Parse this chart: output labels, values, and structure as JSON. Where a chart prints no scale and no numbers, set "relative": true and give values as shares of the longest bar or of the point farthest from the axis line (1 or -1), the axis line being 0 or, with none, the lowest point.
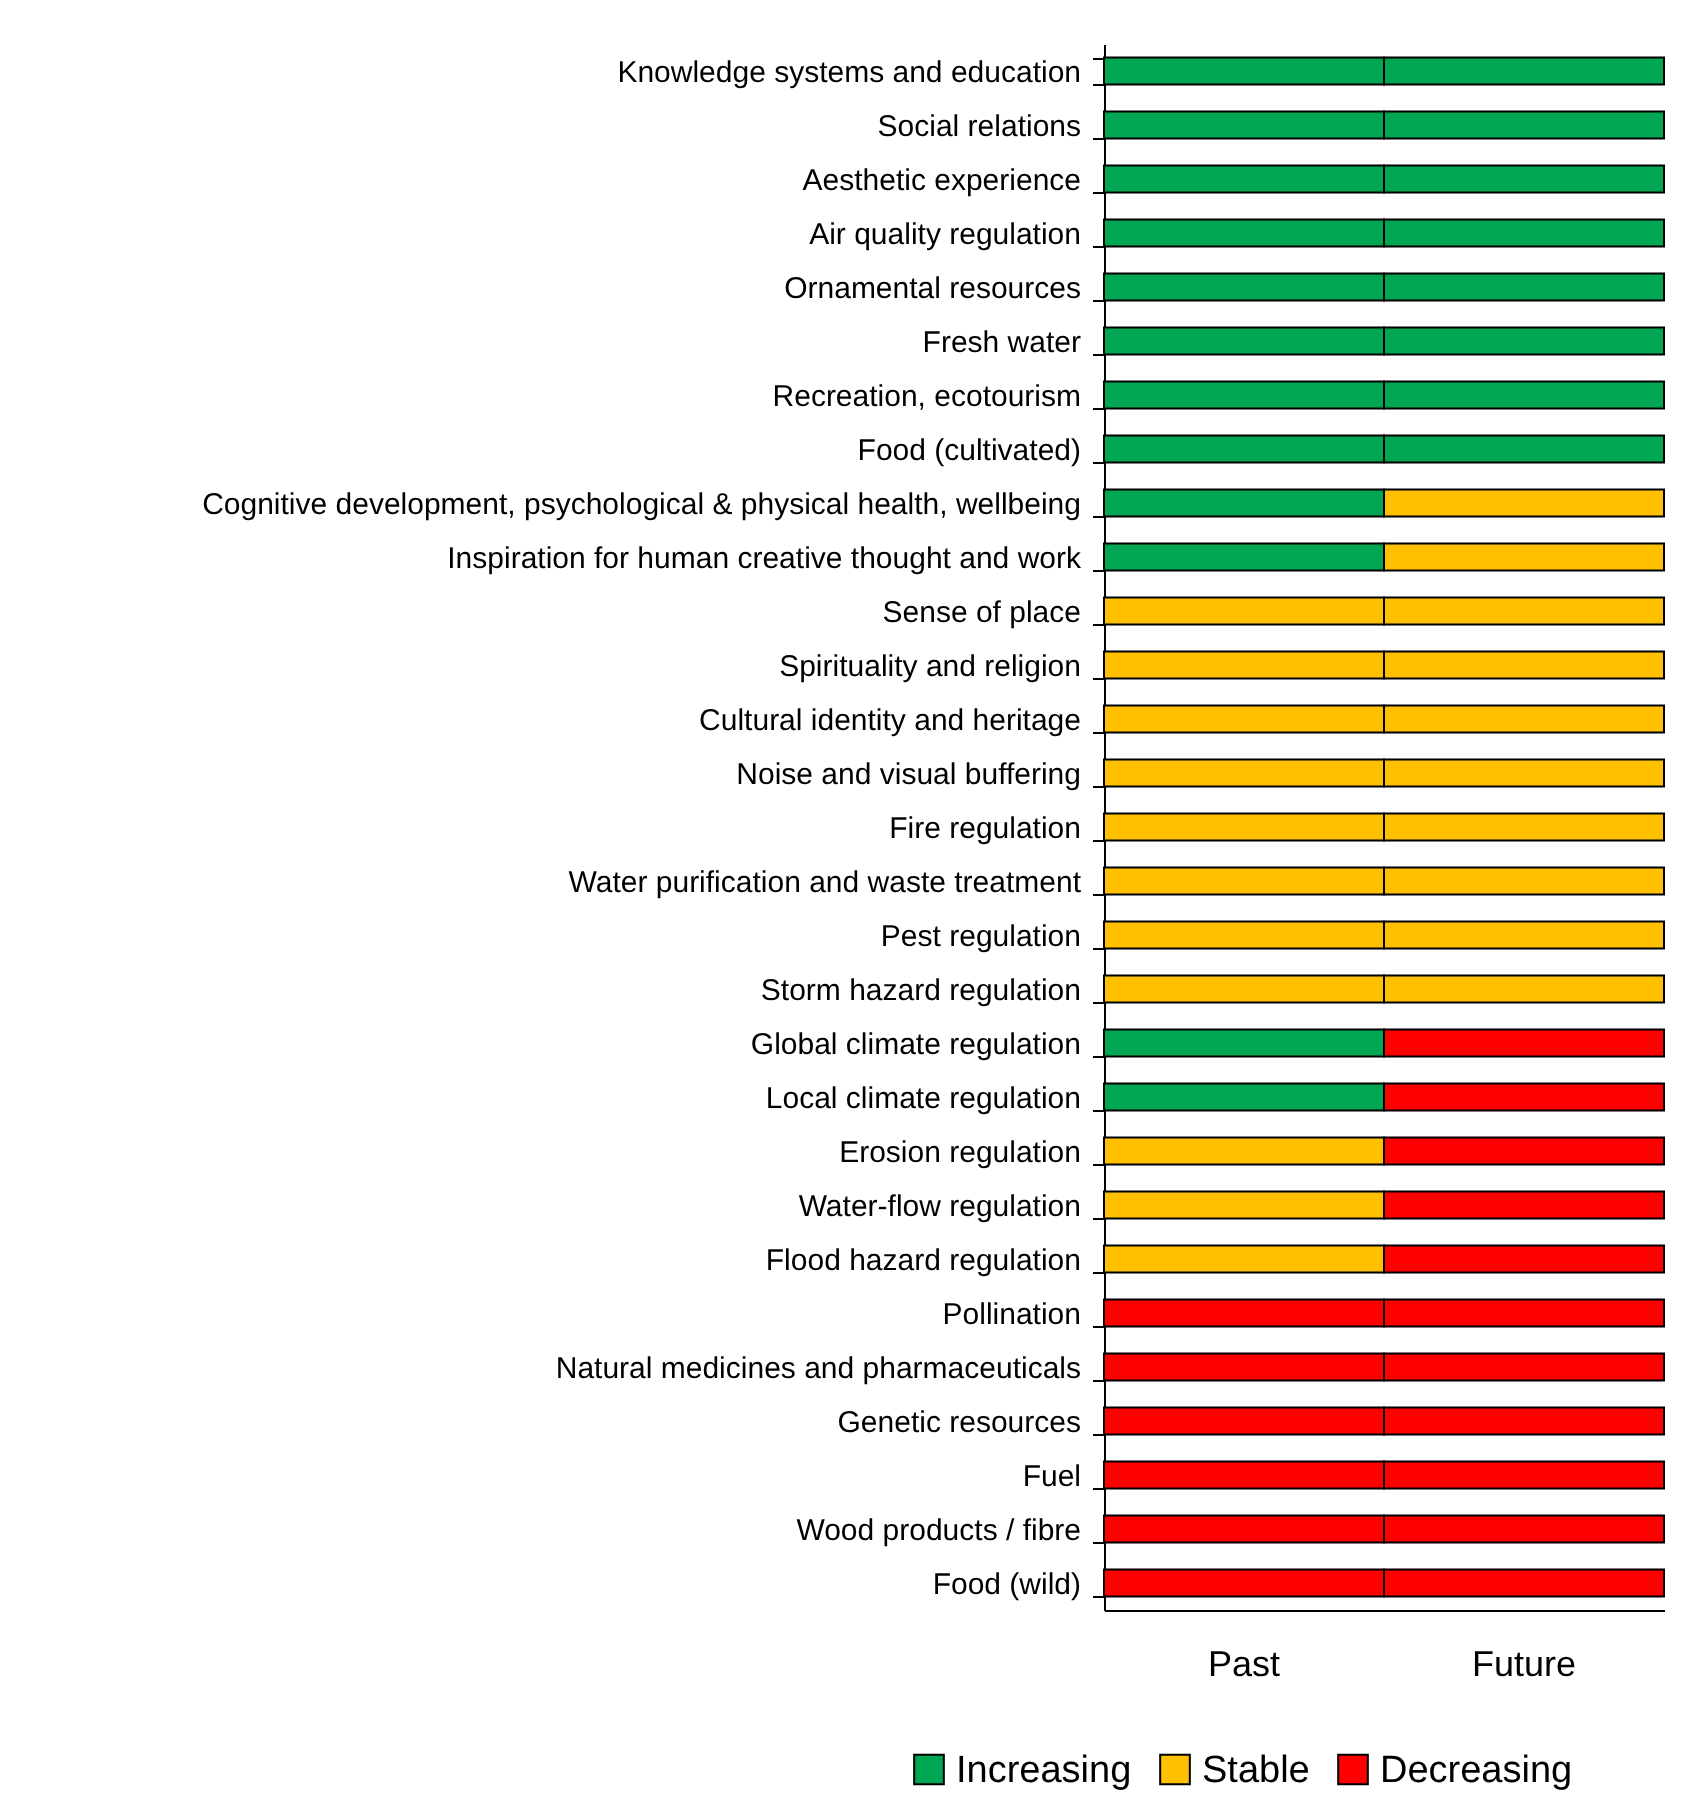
{
  "chart_data": {
    "type": "bar",
    "orientation": "horizontal",
    "stacked": true,
    "relative": true,
    "categories": [
      "Knowledge systems and education",
      "Social relations",
      "Aesthetic experience",
      "Air quality regulation",
      "Ornamental resources",
      "Fresh water",
      "Recreation, ecotourism",
      "Food (cultivated)",
      "Cognitive development, psychological & physical health, wellbeing",
      "Inspiration for human creative thought and work",
      "Sense of place",
      "Spirituality and religion",
      "Cultural identity and heritage",
      "Noise and visual buffering",
      "Fire regulation",
      "Water purification and waste treatment",
      "Pest regulation",
      "Storm hazard regulation",
      "Global climate regulation",
      "Local climate regulation",
      "Erosion regulation",
      "Water-flow regulation",
      "Flood hazard regulation",
      "Pollination",
      "Natural medicines and pharmaceuticals",
      "Genetic resources",
      "Fuel",
      "Wood products / fibre",
      "Food (wild)"
    ],
    "series": [
      {
        "name": "Increasing",
        "color": "#00a651",
        "values": [
          0.5,
          0.5,
          0.5,
          0.5,
          0.5,
          0.5,
          0.5,
          0.5,
          0.5,
          0.5,
          null,
          null,
          null,
          null,
          null,
          null,
          null,
          null,
          0.5,
          0.5,
          null,
          null,
          null,
          null,
          null,
          null,
          null,
          null,
          null
        ]
      },
      {
        "name": "Stable",
        "color": "#ffc000",
        "values": [
          null,
          null,
          null,
          null,
          null,
          null,
          null,
          null,
          null,
          null,
          0.5,
          0.5,
          0.5,
          0.5,
          0.5,
          0.5,
          0.5,
          0.5,
          null,
          null,
          0.5,
          0.5,
          0.5,
          null,
          null,
          null,
          null,
          null,
          null
        ]
      },
      {
        "name": "Decreasing",
        "color": "#ff0000",
        "values": [
          null,
          null,
          null,
          null,
          null,
          null,
          null,
          null,
          null,
          null,
          null,
          null,
          null,
          null,
          null,
          null,
          null,
          null,
          null,
          null,
          null,
          null,
          null,
          0.5,
          0.5,
          0.5,
          0.5,
          0.5,
          0.5
        ]
      },
      {
        "color": "#00a651",
        "values": [
          0.5,
          0.5,
          0.5,
          0.5,
          0.5,
          0.5,
          0.5,
          0.5,
          null,
          null,
          null,
          null,
          null,
          null,
          null,
          null,
          null,
          null,
          null,
          null,
          null,
          null,
          null,
          null,
          null,
          null,
          null,
          null,
          null
        ]
      },
      {
        "color": "#ffc000",
        "values": [
          null,
          null,
          null,
          null,
          null,
          null,
          null,
          null,
          0.5,
          0.5,
          0.5,
          0.5,
          0.5,
          0.5,
          0.5,
          0.5,
          0.5,
          0.5,
          null,
          null,
          null,
          null,
          null,
          null,
          null,
          null,
          null,
          null,
          null
        ]
      },
      {
        "color": "#ff0000",
        "values": [
          null,
          null,
          null,
          null,
          null,
          null,
          null,
          null,
          null,
          null,
          null,
          null,
          null,
          null,
          null,
          null,
          null,
          null,
          0.5,
          0.5,
          0.5,
          0.5,
          0.5,
          0.5,
          0.5,
          0.5,
          0.5,
          0.5,
          0.5
        ]
      }
    ],
    "annotations": [
      "Past",
      "Future"
    ],
    "legend": "bottom"
  }
}
